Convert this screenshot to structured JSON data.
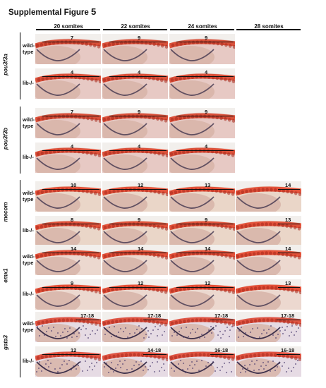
{
  "figure": {
    "title": "Supplemental Figure",
    "number": "5",
    "columns": [
      "20 somites",
      "22 somites",
      "24 somites",
      "28 somites"
    ],
    "genotype_labels": {
      "wild_type": "wild-\ntype",
      "lib": "lib-/-"
    }
  },
  "genes": [
    {
      "name": "pou3f3a",
      "stain": "#d9472e",
      "background": "#e7c9c4",
      "rows": [
        {
          "genotype": "wild-type",
          "panels": [
            "7",
            "9",
            "9",
            null
          ]
        },
        {
          "genotype": "lib-/-",
          "panels": [
            "4",
            "4",
            "4",
            null
          ]
        }
      ]
    },
    {
      "name": "pou3f3b",
      "stain": "#d9472e",
      "background": "#e7c9c4",
      "rows": [
        {
          "genotype": "wild-type",
          "panels": [
            "7",
            "9",
            "9",
            null
          ]
        },
        {
          "genotype": "lib-/-",
          "panels": [
            "4",
            "4",
            "4",
            null
          ]
        }
      ]
    },
    {
      "name": "mecom",
      "stain": "#e1482f",
      "background": "#ead6c8",
      "rows": [
        {
          "genotype": "wild-type",
          "panels": [
            "10",
            "12",
            "13",
            "14"
          ]
        },
        {
          "genotype": "lib-/-",
          "panels": [
            "8",
            "9",
            "9",
            "13"
          ]
        }
      ]
    },
    {
      "name": "emx1",
      "stain": "#e2452c",
      "background": "#ecd8cf",
      "rows": [
        {
          "genotype": "wild-type",
          "panels": [
            "14",
            "14",
            "14",
            "14"
          ]
        },
        {
          "genotype": "lib-/-",
          "panels": [
            "9",
            "12",
            "12",
            "13"
          ]
        }
      ]
    },
    {
      "name": "gata3",
      "stain": "#de4a35",
      "background": "#e6dbe4",
      "rows": [
        {
          "genotype": "wild-type",
          "panels": [
            "17-18",
            "17-18",
            "17-18",
            "17-18"
          ]
        },
        {
          "genotype": "lib-/-",
          "panels": [
            "12",
            "14-18",
            "16-18",
            "16-18"
          ]
        }
      ]
    }
  ]
}
